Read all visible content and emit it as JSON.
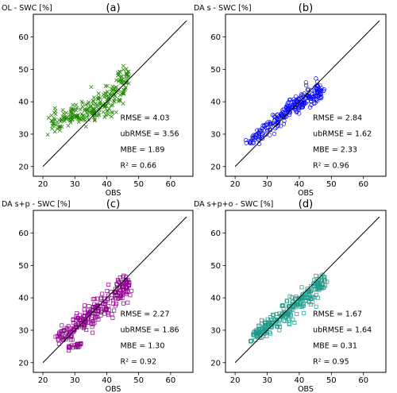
{
  "chart_data": [
    {
      "type": "scatter",
      "panel_label": "(a)",
      "ylabel": "OL - SWC [%]",
      "xlabel": "OBS",
      "marker": "x",
      "color": "#1f8a00",
      "xlim": [
        17,
        67
      ],
      "ylim": [
        17,
        67
      ],
      "xticks": [
        "20",
        "30",
        "40",
        "50",
        "60"
      ],
      "yticks": [
        "20",
        "30",
        "40",
        "50",
        "60"
      ],
      "one_to_one_line": true,
      "stats": [
        "RMSE = 4.03",
        "ubRMSE = 3.56",
        "MBE = 1.89",
        "R² = 0.66"
      ],
      "cloud_x": [
        22,
        24,
        26,
        28,
        30,
        32,
        34,
        36,
        38,
        40,
        42,
        44,
        45,
        46,
        47
      ],
      "cloud_y": [
        33.5,
        34.5,
        35.0,
        35.5,
        36.0,
        36.5,
        37.0,
        37.5,
        38.5,
        40.0,
        41.5,
        44.0,
        45.5,
        46.5,
        47.5
      ],
      "spread": [
        1.5,
        1.6,
        1.6,
        1.6,
        1.6,
        1.7,
        1.8,
        2.0,
        2.2,
        2.4,
        2.8,
        3.2,
        3.0,
        2.5,
        1.8
      ]
    },
    {
      "type": "scatter",
      "panel_label": "(b)",
      "ylabel": "DA s - SWC [%]",
      "xlabel": "OBS",
      "marker": "o",
      "color": "#0000ff",
      "xlim": [
        17,
        67
      ],
      "ylim": [
        17,
        67
      ],
      "xticks": [
        "20",
        "30",
        "40",
        "50",
        "60"
      ],
      "yticks": [
        "20",
        "30",
        "40",
        "50",
        "60"
      ],
      "one_to_one_line": true,
      "stats": [
        "RMSE = 2.84",
        "ubRMSE = 1.62",
        "MBE = 2.33",
        "R² = 0.96"
      ],
      "cloud_x": [
        24,
        26,
        28,
        30,
        32,
        34,
        36,
        38,
        40,
        42,
        44,
        46,
        47
      ],
      "cloud_y": [
        27.0,
        28.5,
        30.5,
        32.0,
        33.5,
        35.0,
        37.0,
        38.5,
        40.0,
        41.0,
        42.0,
        43.0,
        43.5
      ],
      "spread": [
        1.0,
        1.2,
        1.3,
        1.4,
        1.4,
        1.5,
        1.5,
        1.5,
        1.6,
        1.6,
        1.6,
        1.5,
        1.2
      ]
    },
    {
      "type": "scatter",
      "panel_label": "(c)",
      "ylabel": "DA s+p - SWC [%]",
      "xlabel": "OBS",
      "marker": "s",
      "color": "#8b008b",
      "xlim": [
        17,
        67
      ],
      "ylim": [
        17,
        67
      ],
      "xticks": [
        "20",
        "30",
        "40",
        "50",
        "60"
      ],
      "yticks": [
        "20",
        "30",
        "40",
        "50",
        "60"
      ],
      "one_to_one_line": true,
      "stats": [
        "RMSE = 2.27",
        "ubRMSE = 1.86",
        "MBE = 1.30",
        "R² = 0.92"
      ],
      "cloud_x": [
        24,
        26,
        28,
        30,
        32,
        34,
        36,
        38,
        40,
        42,
        44,
        46,
        47
      ],
      "cloud_y": [
        27.5,
        28.5,
        29.5,
        31.0,
        32.5,
        34.0,
        35.5,
        37.0,
        38.5,
        40.0,
        42.0,
        43.5,
        44.0
      ],
      "spread": [
        1.0,
        1.3,
        1.5,
        1.7,
        1.8,
        2.0,
        2.1,
        2.2,
        2.2,
        2.2,
        2.2,
        2.0,
        1.6
      ],
      "tail_x": [
        28,
        29,
        30,
        31,
        32
      ],
      "tail_y": [
        24.5,
        24.8,
        25.0,
        25.5,
        26.0
      ]
    },
    {
      "type": "scatter",
      "panel_label": "(d)",
      "ylabel": "DA s+p+o - SWC [%]",
      "xlabel": "OBS",
      "marker": "s",
      "color": "#1a9a8a",
      "xlim": [
        17,
        67
      ],
      "ylim": [
        17,
        67
      ],
      "xticks": [
        "20",
        "30",
        "40",
        "50",
        "60"
      ],
      "yticks": [
        "20",
        "30",
        "40",
        "50",
        "60"
      ],
      "one_to_one_line": true,
      "stats": [
        "RMSE = 1.67",
        "ubRMSE = 1.64",
        "MBE = 0.31",
        "R² = 0.95"
      ],
      "cloud_x": [
        25,
        27,
        29,
        31,
        33,
        35,
        37,
        39,
        41,
        43,
        45,
        47,
        48
      ],
      "cloud_y": [
        27.5,
        29.0,
        30.5,
        32.0,
        33.5,
        35.0,
        36.5,
        38.5,
        40.0,
        41.5,
        43.0,
        44.5,
        45.0
      ],
      "spread": [
        1.0,
        1.2,
        1.3,
        1.5,
        1.6,
        1.7,
        1.8,
        1.8,
        1.9,
        1.9,
        1.8,
        1.6,
        1.3
      ]
    }
  ]
}
